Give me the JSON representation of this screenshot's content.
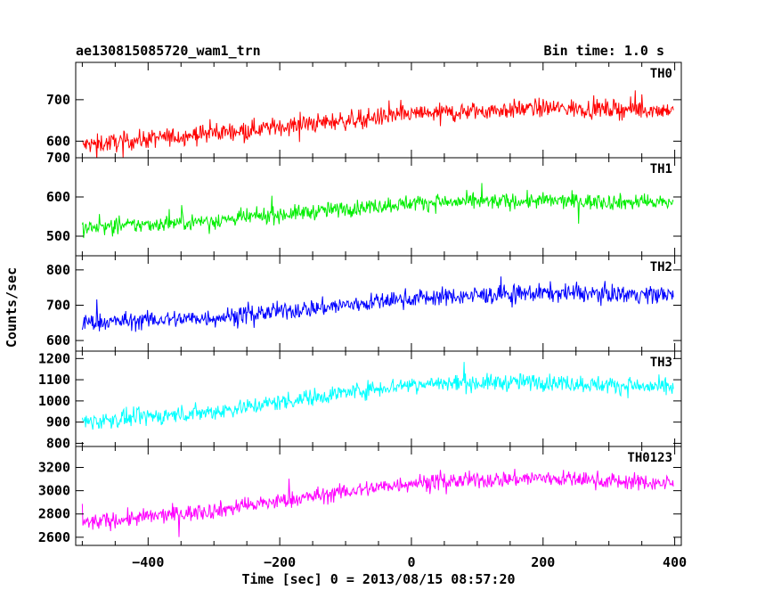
{
  "header": {
    "title": "ae130815085720_wam1_trn",
    "bin_time": "Bin time: 1.0 s"
  },
  "chart_data": {
    "type": "line",
    "xlabel": "Time [sec] 0 = 2013/08/15 08:57:20",
    "ylabel": "Counts/sec",
    "xlim": [
      -510,
      410
    ],
    "x_ticks": [
      -400,
      -200,
      0,
      200,
      400
    ],
    "bin_time_s": 1.0,
    "panels": [
      {
        "name": "TH0",
        "color": "#ff0000",
        "ylim": [
          560,
          790
        ],
        "y_ticks": [
          600,
          700
        ],
        "trend": {
          "x": [
            -500,
            -300,
            -100,
            0,
            200,
            400
          ],
          "y": [
            590,
            620,
            650,
            665,
            680,
            675
          ]
        },
        "noise_amplitude": 22
      },
      {
        "name": "TH1",
        "color": "#00ee00",
        "ylim": [
          450,
          700
        ],
        "y_ticks": [
          500,
          600,
          700
        ],
        "trend": {
          "x": [
            -500,
            -300,
            -100,
            0,
            200,
            400
          ],
          "y": [
            520,
            540,
            570,
            585,
            590,
            585
          ]
        },
        "noise_amplitude": 20
      },
      {
        "name": "TH2",
        "color": "#0000ff",
        "ylim": [
          570,
          840
        ],
        "y_ticks": [
          600,
          700,
          800
        ],
        "trend": {
          "x": [
            -500,
            -300,
            -100,
            0,
            200,
            400
          ],
          "y": [
            650,
            665,
            700,
            720,
            735,
            730
          ]
        },
        "noise_amplitude": 25
      },
      {
        "name": "TH3",
        "color": "#00ffff",
        "ylim": [
          785,
          1235
        ],
        "y_ticks": [
          800,
          900,
          1000,
          1100,
          1200
        ],
        "trend": {
          "x": [
            -500,
            -300,
            -100,
            0,
            200,
            400
          ],
          "y": [
            900,
            950,
            1040,
            1080,
            1090,
            1060
          ]
        },
        "noise_amplitude": 40
      },
      {
        "name": "TH0123",
        "color": "#ff00ff",
        "ylim": [
          2530,
          3380
        ],
        "y_ticks": [
          2600,
          2800,
          3000,
          3200
        ],
        "trend": {
          "x": [
            -500,
            -300,
            -100,
            0,
            200,
            400
          ],
          "y": [
            2720,
            2830,
            2990,
            3070,
            3110,
            3060
          ]
        },
        "noise_amplitude": 70
      }
    ]
  }
}
